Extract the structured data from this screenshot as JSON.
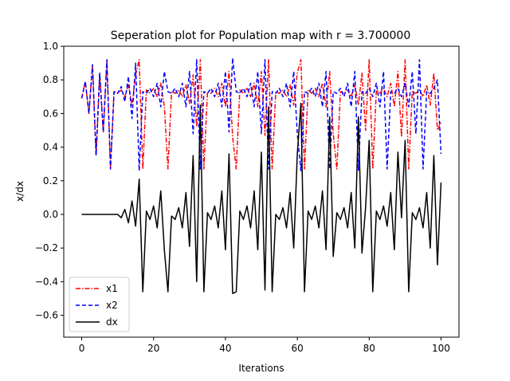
{
  "chart_data": {
    "type": "line",
    "title": "Seperation plot for Population map with r = 3.700000",
    "xlabel": "Iterations",
    "ylabel": "x/dx",
    "xlim": [
      -5,
      105
    ],
    "ylim": [
      -0.73,
      1.0
    ],
    "xticks": [
      0,
      20,
      40,
      60,
      80,
      100
    ],
    "yticks": [
      -0.6,
      -0.4,
      -0.2,
      0.0,
      0.2,
      0.4,
      0.6,
      0.8,
      1.0
    ],
    "xtick_labels": [
      "0",
      "20",
      "40",
      "60",
      "80",
      "100"
    ],
    "ytick_labels": [
      "−0.6",
      "−0.4",
      "−0.2",
      "0.0",
      "0.2",
      "0.4",
      "0.6",
      "0.8",
      "1.0"
    ],
    "legend_position": "lower-left",
    "x": [
      0,
      1,
      2,
      3,
      4,
      5,
      6,
      7,
      8,
      9,
      10,
      11,
      12,
      13,
      14,
      15,
      16,
      17,
      18,
      19,
      20,
      21,
      22,
      23,
      24,
      25,
      26,
      27,
      28,
      29,
      30,
      31,
      32,
      33,
      34,
      35,
      36,
      37,
      38,
      39,
      40,
      41,
      42,
      43,
      44,
      45,
      46,
      47,
      48,
      49,
      50,
      51,
      52,
      53,
      54,
      55,
      56,
      57,
      58,
      59,
      60,
      61,
      62,
      63,
      64,
      65,
      66,
      67,
      68,
      69,
      70,
      71,
      72,
      73,
      74,
      75,
      76,
      77,
      78,
      79,
      80,
      81,
      82,
      83,
      84,
      85,
      86,
      87,
      88,
      89,
      90,
      91,
      92,
      93,
      94,
      95,
      96,
      97,
      98,
      99,
      100
    ],
    "series": [
      {
        "name": "x1",
        "color": "#ff0000",
        "dash": "6,2,1.5,2",
        "values": [
          0.69,
          0.79,
          0.6,
          0.89,
          0.35,
          0.84,
          0.49,
          0.92,
          0.27,
          0.73,
          0.72,
          0.74,
          0.7,
          0.77,
          0.65,
          0.83,
          0.92,
          0.27,
          0.74,
          0.72,
          0.75,
          0.7,
          0.78,
          0.64,
          0.27,
          0.73,
          0.72,
          0.74,
          0.7,
          0.77,
          0.66,
          0.83,
          0.52,
          0.92,
          0.27,
          0.73,
          0.72,
          0.75,
          0.7,
          0.78,
          0.64,
          0.85,
          0.46,
          0.27,
          0.74,
          0.72,
          0.75,
          0.7,
          0.78,
          0.64,
          0.85,
          0.47,
          0.92,
          0.27,
          0.73,
          0.72,
          0.74,
          0.7,
          0.77,
          0.65,
          0.84,
          0.92,
          0.27,
          0.74,
          0.72,
          0.75,
          0.7,
          0.78,
          0.64,
          0.85,
          0.48,
          0.27,
          0.73,
          0.72,
          0.74,
          0.7,
          0.77,
          0.65,
          0.84,
          0.5,
          0.92,
          0.27,
          0.74,
          0.72,
          0.75,
          0.7,
          0.78,
          0.64,
          0.85,
          0.46,
          0.92,
          0.27,
          0.73,
          0.72,
          0.74,
          0.7,
          0.77,
          0.65,
          0.84,
          0.5,
          0.55
        ]
      },
      {
        "name": "x2",
        "color": "#0000ff",
        "dash": "5,3",
        "values": [
          0.69,
          0.79,
          0.6,
          0.89,
          0.35,
          0.84,
          0.49,
          0.92,
          0.27,
          0.73,
          0.72,
          0.76,
          0.67,
          0.82,
          0.57,
          0.9,
          0.26,
          0.73,
          0.72,
          0.75,
          0.7,
          0.78,
          0.64,
          0.85,
          0.73,
          0.72,
          0.75,
          0.7,
          0.78,
          0.64,
          0.85,
          0.48,
          0.92,
          0.27,
          0.73,
          0.72,
          0.75,
          0.7,
          0.78,
          0.64,
          0.85,
          0.49,
          0.93,
          0.73,
          0.72,
          0.75,
          0.7,
          0.78,
          0.64,
          0.85,
          0.48,
          0.92,
          0.27,
          0.73,
          0.72,
          0.75,
          0.7,
          0.78,
          0.64,
          0.85,
          0.48,
          0.26,
          0.73,
          0.72,
          0.75,
          0.7,
          0.78,
          0.64,
          0.85,
          0.27,
          0.73,
          0.72,
          0.75,
          0.7,
          0.78,
          0.64,
          0.85,
          0.26,
          0.73,
          0.72,
          0.75,
          0.7,
          0.78,
          0.64,
          0.85,
          0.27,
          0.73,
          0.72,
          0.75,
          0.7,
          0.78,
          0.64,
          0.85,
          0.48,
          0.92,
          0.27,
          0.73,
          0.72,
          0.75,
          0.8,
          0.36
        ]
      },
      {
        "name": "dx",
        "color": "#000000",
        "dash": "",
        "values": [
          0.0,
          0.0,
          0.0,
          0.0,
          -0.0,
          0.0,
          0.0,
          0.0,
          -0.0,
          0.0,
          0.0,
          -0.02,
          0.03,
          -0.05,
          0.08,
          -0.07,
          0.21,
          -0.46,
          0.02,
          -0.03,
          0.05,
          -0.08,
          0.14,
          -0.21,
          -0.46,
          -0.01,
          -0.03,
          0.04,
          -0.08,
          0.13,
          -0.19,
          0.35,
          -0.4,
          0.65,
          -0.46,
          0.01,
          -0.03,
          0.05,
          -0.08,
          0.14,
          -0.21,
          0.36,
          -0.47,
          -0.46,
          0.02,
          -0.03,
          0.05,
          -0.08,
          0.14,
          -0.21,
          0.37,
          -0.45,
          0.64,
          -0.46,
          0.0,
          -0.03,
          0.04,
          -0.08,
          0.13,
          -0.2,
          0.36,
          0.66,
          -0.46,
          0.02,
          -0.03,
          0.05,
          -0.08,
          0.14,
          -0.21,
          0.58,
          -0.25,
          0.01,
          -0.03,
          0.04,
          -0.08,
          0.13,
          -0.2,
          0.58,
          -0.23,
          0.04,
          0.44,
          -0.46,
          0.02,
          -0.03,
          0.05,
          -0.07,
          0.13,
          -0.21,
          0.37,
          -0.02,
          0.44,
          -0.46,
          0.01,
          -0.03,
          0.04,
          -0.08,
          0.13,
          -0.2,
          0.35,
          -0.3,
          0.19
        ]
      }
    ]
  }
}
